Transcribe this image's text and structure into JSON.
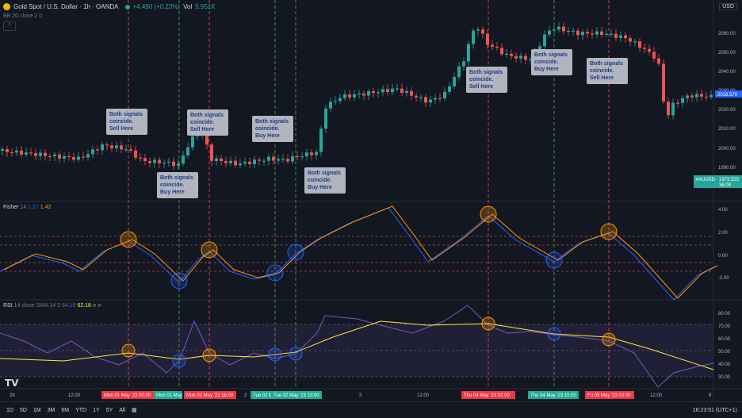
{
  "header": {
    "symbol": "Gold Spot / U.S. Dollar · 1h · OANDA",
    "change": "+4.490 (+0.23%)",
    "vol_label": "Vol",
    "vol_value": "5.951K",
    "sub": "BB 20 close 2 0",
    "collapse_glyph": "^"
  },
  "currency": "USD",
  "price_axis": {
    "ticks": [
      "2060.00",
      "2050.00",
      "2040.00",
      "2030.00",
      "2020.00",
      "2010.00",
      "2000.00",
      "1990.00",
      "1980.00"
    ],
    "current_price_label": "2018.570",
    "symbol_tag": "XAUUSD",
    "price_tag": "1973.525",
    "countdown": "36:09",
    "colors": {
      "up": "#26a69a",
      "down": "#ef5350",
      "sell_line": "#ef5350",
      "buy_line": "#4caf50",
      "callout_bg": "#b2b5be",
      "callout_text": "#1e3a8a"
    }
  },
  "callouts": [
    {
      "text": [
        "Both signals",
        "coincide.",
        "Sell Here"
      ],
      "type": "sell"
    },
    {
      "text": [
        "Both signals",
        "coincide.",
        "Buy Here"
      ],
      "type": "buy"
    },
    {
      "text": [
        "Both signals",
        "coincide.",
        "Sell Here"
      ],
      "type": "sell"
    },
    {
      "text": [
        "Both signals",
        "coincide.",
        "Buy Here"
      ],
      "type": "buy"
    },
    {
      "text": [
        "Both signals",
        "coincide.",
        "Buy Here"
      ],
      "type": "buy"
    },
    {
      "text": [
        "Both signals",
        "coincide.",
        "Sell Here"
      ],
      "type": "sell"
    },
    {
      "text": [
        "Both signals",
        "coincide.",
        "Buy Here"
      ],
      "type": "buy"
    },
    {
      "text": [
        "Both signals",
        "coincide.",
        "Sell Here"
      ],
      "type": "sell"
    }
  ],
  "fisher": {
    "label": "Fisher",
    "len": "14",
    "v1": "1.17",
    "v2": "1.42",
    "ticks": [
      "4.00",
      "2.00",
      "0.00",
      "-2.00"
    ],
    "colors": {
      "fisher": "#2962ff",
      "trigger": "#ff9800",
      "level": "#ef5350"
    }
  },
  "rsi": {
    "label": "RSI",
    "params": "14 close SMA 14 2",
    "v1": "64.16",
    "v2": "62.18",
    "v3": "ø ø",
    "ticks": [
      "80.00",
      "70.00",
      "60.00",
      "50.00",
      "40.00",
      "30.00"
    ],
    "colors": {
      "rsi": "#7e57c2",
      "ma": "#ffeb3b",
      "band": "#7e57c2"
    }
  },
  "time_axis": {
    "ticks": [
      "28",
      "12:00",
      "2",
      "3",
      "12:00",
      "12:00",
      "8"
    ],
    "highlighted": [
      {
        "text": "Mon 01 May '23   00:00",
        "type": "sell"
      },
      {
        "text": "Mon 01 May '23",
        "type": "buy"
      },
      {
        "text": "Mon 01 May '23   16:00",
        "type": "sell"
      },
      {
        "text": "Tue 02 M",
        "type": "buy"
      },
      {
        "text": "Tue 02 May '23   10:00",
        "type": "buy"
      },
      {
        "text": "Thu 04 May '23   02:00",
        "type": "sell"
      },
      {
        "text": "Thu 04 May '23   15:00",
        "type": "buy"
      },
      {
        "text": "Fri 05 May '23   03:00",
        "type": "sell"
      }
    ]
  },
  "bottom_bar": {
    "ranges": [
      "1D",
      "5D",
      "1M",
      "3M",
      "6M",
      "YTD",
      "1Y",
      "5Y",
      "All"
    ],
    "time": "16:23:51 (UTC+1)"
  },
  "logo": "TV"
}
